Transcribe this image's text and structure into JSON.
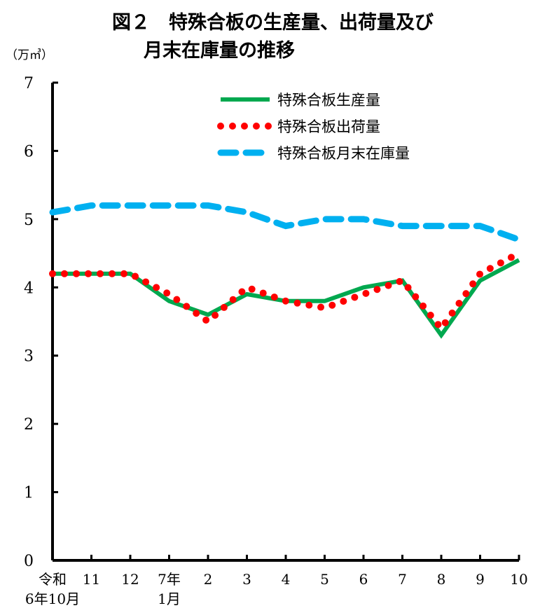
{
  "chart_data": {
    "type": "line",
    "title_line1": "図２　特殊合板の生産量、出荷量及び",
    "title_line2": "月末在庫量の推移",
    "ylabel": "（万㎥）",
    "xlabel": "",
    "ylim": [
      0,
      7
    ],
    "yticks": [
      "0",
      "1",
      "2",
      "3",
      "4",
      "5",
      "6",
      "7"
    ],
    "categories": [
      {
        "top": "令和",
        "bottom": "6年10月"
      },
      {
        "top": "11",
        "bottom": ""
      },
      {
        "top": "12",
        "bottom": ""
      },
      {
        "top": "7年",
        "bottom": "1月"
      },
      {
        "top": "2",
        "bottom": ""
      },
      {
        "top": "3",
        "bottom": ""
      },
      {
        "top": "4",
        "bottom": ""
      },
      {
        "top": "5",
        "bottom": ""
      },
      {
        "top": "6",
        "bottom": ""
      },
      {
        "top": "7",
        "bottom": ""
      },
      {
        "top": "8",
        "bottom": ""
      },
      {
        "top": "9",
        "bottom": ""
      },
      {
        "top": "10",
        "bottom": ""
      }
    ],
    "grid": false,
    "legend_position": "top-right",
    "series": [
      {
        "name": "特殊合板生産量",
        "style": "solid",
        "color": "#00a84f",
        "values": [
          4.2,
          4.2,
          4.2,
          3.8,
          3.6,
          3.9,
          3.8,
          3.8,
          4.0,
          4.1,
          3.3,
          4.1,
          4.4
        ]
      },
      {
        "name": "特殊合板出荷量",
        "style": "dotted",
        "color": "#ff0000",
        "values": [
          4.2,
          4.2,
          4.2,
          3.9,
          3.5,
          4.0,
          3.8,
          3.7,
          3.9,
          4.1,
          3.4,
          4.2,
          4.5
        ]
      },
      {
        "name": "特殊合板月末在庫量",
        "style": "dashed",
        "color": "#00b0f0",
        "values": [
          5.1,
          5.2,
          5.2,
          5.2,
          5.2,
          5.1,
          4.9,
          5.0,
          5.0,
          4.9,
          4.9,
          4.9,
          4.7
        ]
      }
    ]
  }
}
